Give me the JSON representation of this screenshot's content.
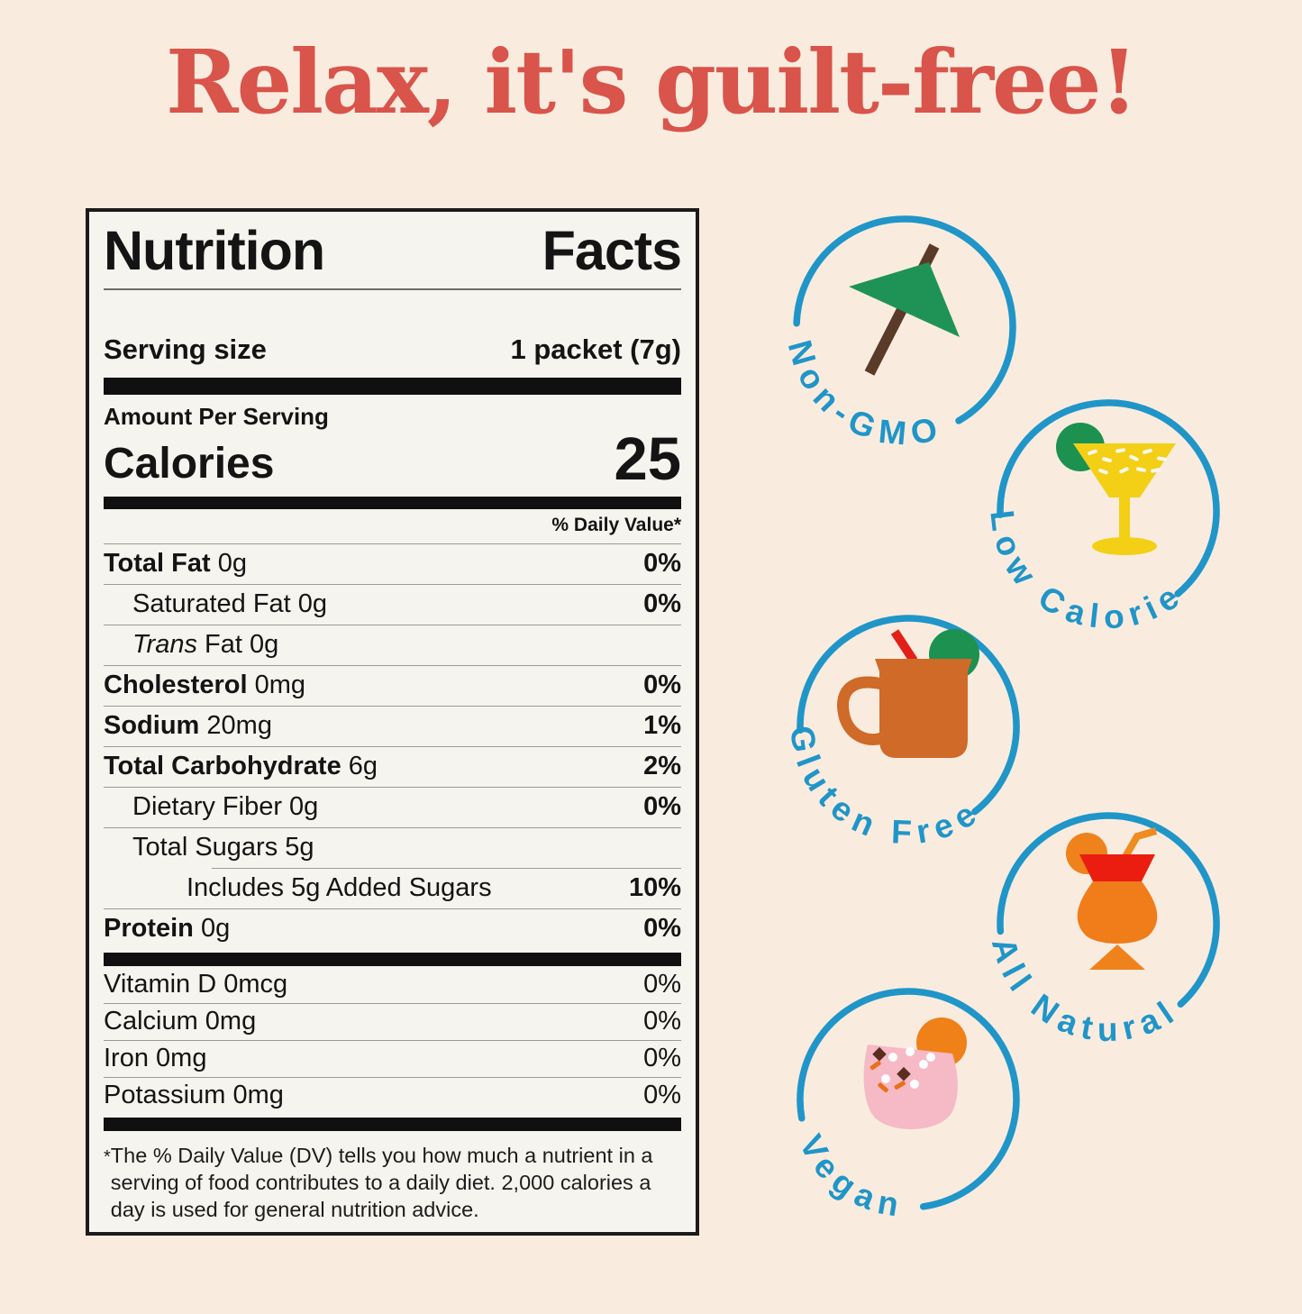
{
  "colors": {
    "background": "#f9ecdf",
    "headline_red": "#d9544a",
    "badge_blue": "#2095c8",
    "label_background": "#f6f4ee"
  },
  "headline": {
    "text": "Relax, it's guilt-free!"
  },
  "label": {
    "title": "Nutrition Facts",
    "serving_size_label": "Serving size",
    "serving_size_value": "1 packet (7g)",
    "amount_per_serving": "Amount Per Serving",
    "calories_label": "Calories",
    "calories_value": "25",
    "daily_value_header": "% Daily Value*",
    "nutrients": [
      {
        "name": "Total Fat",
        "bold": true,
        "amount": "0g",
        "dv": "0%",
        "indent": 0
      },
      {
        "name": "Saturated Fat",
        "bold": false,
        "amount": "0g",
        "dv": "0%",
        "indent": 1
      },
      {
        "name_italic": "Trans",
        "name": "Fat",
        "bold": false,
        "amount": "0g",
        "dv": "",
        "indent": 1
      },
      {
        "name": "Cholesterol",
        "bold": true,
        "amount": "0mg",
        "dv": "0%",
        "indent": 0
      },
      {
        "name": "Sodium",
        "bold": true,
        "amount": "20mg",
        "dv": "1%",
        "indent": 0
      },
      {
        "name": "Total Carbohydrate",
        "bold": true,
        "amount": "6g",
        "dv": "2%",
        "indent": 0
      },
      {
        "name": "Dietary Fiber",
        "bold": false,
        "amount": "0g",
        "dv": "0%",
        "indent": 1
      },
      {
        "name": "Total Sugars",
        "bold": false,
        "amount": "5g",
        "dv": "",
        "indent": 1
      },
      {
        "name": "Includes 5g Added Sugars",
        "bold": false,
        "amount": "",
        "dv": "10%",
        "indent": 2,
        "partial_rule": true
      },
      {
        "name": "Protein",
        "bold": true,
        "amount": "0g",
        "dv": "0%",
        "indent": 0
      }
    ],
    "vitamins": [
      {
        "name": "Vitamin D",
        "amount": "0mcg",
        "dv": "0%"
      },
      {
        "name": "Calcium",
        "amount": "0mg",
        "dv": "0%"
      },
      {
        "name": "Iron",
        "amount": "0mg",
        "dv": "0%"
      },
      {
        "name": "Potassium",
        "amount": "0mg",
        "dv": "0%"
      }
    ],
    "footnote_marker": "*",
    "footnote": "The % Daily Value (DV) tells you how much a nutrient in a serving of food contributes to a daily diet. 2,000 calories a day is used for general nutrition advice."
  },
  "badges": [
    {
      "label": "Non-GMO",
      "icon": "cocktail-umbrella-icon"
    },
    {
      "label": "Low Calorie",
      "icon": "margarita-glass-icon"
    },
    {
      "label": "Gluten Free",
      "icon": "mule-mug-icon"
    },
    {
      "label": "All Natural",
      "icon": "hurricane-cocktail-icon"
    },
    {
      "label": "Vegan",
      "icon": "pink-cocktail-icon"
    }
  ]
}
